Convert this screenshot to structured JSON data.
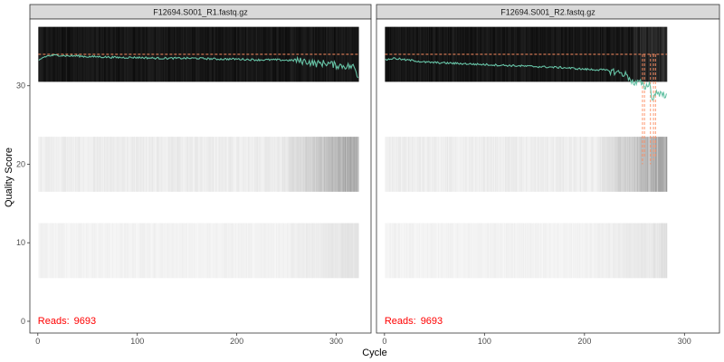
{
  "chart_data": {
    "type": "line",
    "xlabel": "Cycle",
    "ylabel": "Quality Score",
    "xlim": [
      -8,
      335
    ],
    "ylim": [
      -1.5,
      38.5
    ],
    "x_ticks": [
      0,
      100,
      200,
      300
    ],
    "y_ticks": [
      0,
      10,
      20,
      30
    ],
    "grid": false,
    "colors": {
      "mean_line": "#66c2a5",
      "median_line": "#fc8d62",
      "quartile_line": "#fc8d62",
      "reads_label": "#ff0000",
      "strip_bg": "#d9d9d9",
      "panel_border": "#333333"
    },
    "reads_label": "Reads:",
    "panels": [
      {
        "title": "F12694.S001_R1.fastq.gz",
        "reads_count": "9693",
        "cycles": 322,
        "mean_quality": [
          [
            1,
            33.2
          ],
          [
            5,
            33.6
          ],
          [
            10,
            33.8
          ],
          [
            20,
            33.9
          ],
          [
            30,
            33.8
          ],
          [
            40,
            33.8
          ],
          [
            50,
            33.7
          ],
          [
            60,
            33.7
          ],
          [
            80,
            33.6
          ],
          [
            100,
            33.6
          ],
          [
            120,
            33.5
          ],
          [
            140,
            33.5
          ],
          [
            160,
            33.5
          ],
          [
            180,
            33.4
          ],
          [
            200,
            33.4
          ],
          [
            220,
            33.3
          ],
          [
            240,
            33.3
          ],
          [
            260,
            33.2
          ],
          [
            270,
            33.1
          ],
          [
            280,
            32.8
          ],
          [
            290,
            32.9
          ],
          [
            300,
            32.6
          ],
          [
            310,
            32.5
          ],
          [
            318,
            32.4
          ],
          [
            322,
            31.0
          ]
        ],
        "median_quality": 34,
        "quartile_spikes": []
      },
      {
        "title": "F12694.S001_R2.fastq.gz",
        "reads_count": "9693",
        "cycles": 282,
        "mean_quality": [
          [
            1,
            33.3
          ],
          [
            5,
            33.4
          ],
          [
            10,
            33.5
          ],
          [
            20,
            33.3
          ],
          [
            30,
            33.2
          ],
          [
            40,
            33.0
          ],
          [
            60,
            32.9
          ],
          [
            80,
            32.8
          ],
          [
            100,
            32.7
          ],
          [
            120,
            32.6
          ],
          [
            140,
            32.5
          ],
          [
            160,
            32.4
          ],
          [
            180,
            32.3
          ],
          [
            200,
            32.1
          ],
          [
            220,
            32.0
          ],
          [
            230,
            31.8
          ],
          [
            240,
            31.5
          ],
          [
            245,
            31.0
          ],
          [
            250,
            30.2
          ],
          [
            255,
            30.5
          ],
          [
            260,
            29.8
          ],
          [
            265,
            30.3
          ],
          [
            268,
            28.2
          ],
          [
            272,
            29.2
          ],
          [
            276,
            29.0
          ],
          [
            280,
            28.8
          ],
          [
            282,
            29.0
          ]
        ],
        "median_quality": 34,
        "quartile_spikes": [
          {
            "x": 258,
            "from": 34,
            "to": 20
          },
          {
            "x": 260,
            "from": 34,
            "to": 21
          },
          {
            "x": 266,
            "from": 34,
            "to": 20
          },
          {
            "x": 269,
            "from": 34,
            "to": 20.5
          },
          {
            "x": 271,
            "from": 34,
            "to": 21
          }
        ]
      }
    ]
  }
}
